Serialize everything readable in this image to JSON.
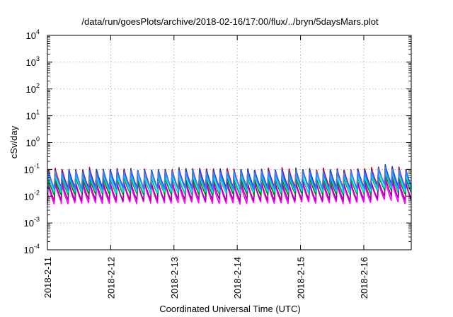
{
  "chart_data": {
    "type": "line",
    "title": "/data/run/goesPlots/archive/2018-02-16/17:00/flux/../bryn/5daysMars.plot",
    "xlabel": "Coordinated Universal Time (UTC)",
    "ylabel": "cSv/day",
    "yscale": "log",
    "ylim_exp": [
      -4,
      4
    ],
    "ytick_labels": [
      {
        "base": "10",
        "exp": "4"
      },
      {
        "base": "10",
        "exp": "3"
      },
      {
        "base": "10",
        "exp": "2"
      },
      {
        "base": "10",
        "exp": "1"
      },
      {
        "base": "10",
        "exp": "0"
      },
      {
        "base": "10",
        "exp": "-1"
      },
      {
        "base": "10",
        "exp": "-2"
      },
      {
        "base": "10",
        "exp": "-3"
      },
      {
        "base": "10",
        "exp": "-4"
      }
    ],
    "xlim_days": [
      0,
      5.75
    ],
    "xtick_labels": [
      "2018-2-11",
      "2018-2-12",
      "2018-2-13",
      "2018-2-14",
      "2018-2-15",
      "2018-2-16"
    ],
    "grid": true,
    "periods_per_day": 9.2,
    "series": [
      {
        "color": "#ff00ff",
        "peak": 0.03,
        "trough": 0.0055
      },
      {
        "color": "#a000a0",
        "peak": 0.035,
        "trough": 0.007
      },
      {
        "color": "#008000",
        "peak": 0.05,
        "trough": 0.012
      },
      {
        "color": "#00e5e5",
        "peak": 0.065,
        "trough": 0.014
      },
      {
        "color": "#e00000",
        "peak": 0.11,
        "trough": 0.02
      },
      {
        "color": "#1f3fd0",
        "peak": 0.1,
        "trough": 0.02
      },
      {
        "color": "#3b82f6",
        "peak": 0.085,
        "trough": 0.018
      }
    ]
  }
}
